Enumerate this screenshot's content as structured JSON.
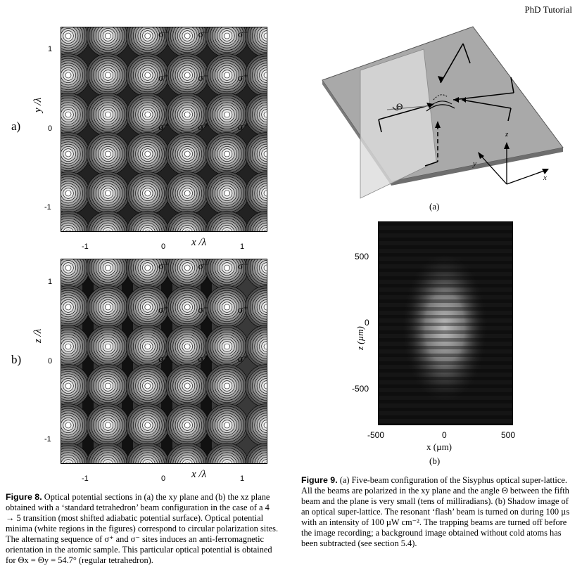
{
  "running_head": "PhD Tutorial",
  "figure8": {
    "panel_a_label": "a)",
    "panel_b_label": "b)",
    "panel_a": {
      "ylabel": "y /λ",
      "xlabel": "x /λ",
      "y_ticks": [
        "1",
        "0",
        "-1"
      ],
      "x_ticks": [
        "-1",
        "0",
        "1"
      ],
      "site_labels": [
        [
          "σ⁻",
          "σ⁺",
          "σ⁻"
        ],
        [
          "σ⁺",
          "σ⁻",
          "σ⁺"
        ],
        [
          "σ⁻",
          "σ⁺",
          "σ⁻"
        ]
      ]
    },
    "panel_b": {
      "ylabel": "z /λ",
      "xlabel": "x /λ",
      "y_ticks": [
        "1",
        "0",
        "-1"
      ],
      "x_ticks": [
        "-1",
        "0",
        "1"
      ],
      "site_labels": [
        [
          "σ⁻",
          "σ⁺",
          "σ⁻"
        ],
        [
          "σ⁺",
          "σ⁻",
          "σ⁺"
        ],
        [
          "σ⁻",
          "σ⁺",
          "σ⁻"
        ]
      ]
    },
    "caption_label": "Figure 8.",
    "caption_text": "Optical potential sections in (a) the xy plane and (b) the xz plane obtained with a ‘standard tetrahedron’ beam configuration in the case of a 4 → 5 transition (most shifted adiabatic potential surface). Optical potential minima (white regions in the figures) correspond to circular polarization sites. The alternating sequence of σ⁺ and σ⁻ sites induces an anti-ferromagnetic orientation in the atomic sample. This particular optical potential is obtained for Θx = Θy = 54.7° (regular tetrahedron)."
  },
  "figure9": {
    "panel_a_caption": "(a)",
    "panel_b_caption": "(b)",
    "theta_label": "Θ",
    "axes_labels": {
      "x": "x",
      "y": "y",
      "z": "z"
    },
    "image_panel": {
      "ylabel": "z (µm)",
      "xlabel": "x (µm)",
      "y_ticks": [
        "500",
        "0",
        "-500"
      ],
      "x_ticks": [
        "-500",
        "0",
        "500"
      ]
    },
    "caption_label": "Figure 9.",
    "caption_text": "(a) Five-beam configuration of the Sisyphus optical super-lattice. All the beams are polarized in the xy plane and the angle Θ between the fifth beam and the plane is very small (tens of milliradians). (b) Shadow image of an optical super-lattice. The resonant ‘flash’ beam is turned on during 100 µs with an intensity of 100 µW cm⁻². The trapping beams are turned off before the image recording; a background image obtained without cold atoms has been subtracted (see section 5.4)."
  }
}
